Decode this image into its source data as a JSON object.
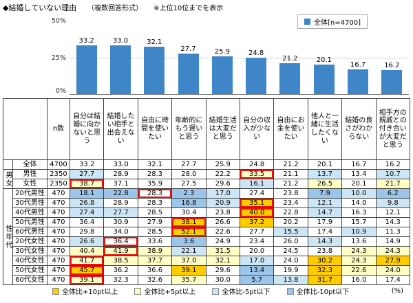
{
  "header": {
    "title": "◆結婚していない理由",
    "format_note": "（複数回答形式）",
    "rank_note": "※上位10位までを表示"
  },
  "legend": {
    "label": "全体[n=4700]",
    "color": "#3e86c7"
  },
  "y_axis": {
    "max": "50%",
    "mid": "25%",
    "min": "0%"
  },
  "chart_data": {
    "type": "bar",
    "title": "結婚していない理由（複数回答形式） 上位10位",
    "categories": [
      "自分は結婚に向かないと思う",
      "結婚したい相手と出会えない",
      "自由に時間を使いたい",
      "年齢的にもう遅いと思う",
      "結婚生活は大変だと思う",
      "自分の収入が少ない",
      "自由にお金を使いたい",
      "他人と一緒に生活したくない",
      "結婚の良さがわからない",
      "相手方の親戚との付き合いが大変だと思う"
    ],
    "values": [
      33.2,
      33.0,
      32.1,
      27.7,
      25.9,
      24.8,
      21.2,
      20.1,
      16.7,
      16.2
    ],
    "series_name": "全体[n=4700]",
    "xlabel": "",
    "ylabel": "%",
    "ylim": [
      0,
      50
    ],
    "bar_color": "#3e86c7",
    "grid": "25% line only",
    "legend_position": "top-right"
  },
  "table": {
    "n_header": "n数",
    "rows": [
      {
        "group": {
          "label": "",
          "span": 1
        },
        "label": "全体",
        "n": "4700",
        "values": [
          33.2,
          33.0,
          32.1,
          27.7,
          25.9,
          24.8,
          21.2,
          20.1,
          16.7,
          16.2
        ],
        "cls": [
          "",
          "",
          "",
          "",
          "",
          "",
          "",
          "",
          "",
          ""
        ],
        "max": -1
      },
      {
        "group": {
          "label": "男女",
          "span": 2
        },
        "label": "男性",
        "n": "2350",
        "values": [
          27.7,
          28.9,
          28.3,
          28.0,
          22.2,
          33.5,
          21.1,
          13.7,
          13.4,
          10.7
        ],
        "cls": [
          "m5",
          "",
          "",
          "",
          "",
          "p5",
          "",
          "m5",
          "",
          "m5"
        ],
        "max": 5
      },
      {
        "label": "女性",
        "n": "2350",
        "values": [
          38.7,
          37.1,
          35.9,
          27.5,
          29.6,
          16.1,
          21.2,
          26.5,
          20.1,
          21.7
        ],
        "cls": [
          "p5",
          "",
          "",
          "",
          "",
          "m5",
          "",
          "p5",
          "",
          "p5"
        ],
        "max": 0
      },
      {
        "group": {
          "label": "性年代",
          "span": 10
        },
        "label": "20代男性",
        "n": "470",
        "values": [
          18.1,
          22.8,
          28.3,
          2.3,
          17.0,
          27.4,
          23.8,
          7.9,
          10.0,
          6.2
        ],
        "cls": [
          "m10",
          "m10",
          "",
          "m10",
          "m5",
          "",
          "",
          "m10",
          "m5",
          "m10"
        ],
        "max": 2
      },
      {
        "label": "30代男性",
        "n": "470",
        "values": [
          26.8,
          28.9,
          28.3,
          16.8,
          20.9,
          35.1,
          23.4,
          12.1,
          14.0,
          9.8
        ],
        "cls": [
          "m5",
          "",
          "",
          "m10",
          "m5",
          "p10",
          "",
          "m5",
          "",
          "m5"
        ],
        "max": 5
      },
      {
        "label": "40代男性",
        "n": "470",
        "values": [
          27.4,
          27.7,
          28.5,
          30.4,
          23.8,
          40.0,
          22.8,
          14.7,
          16.3,
          12.1
        ],
        "cls": [
          "m5",
          "m5",
          "",
          "",
          "",
          "p10",
          "",
          "m5",
          "",
          ""
        ],
        "max": 5
      },
      {
        "label": "50代男性",
        "n": "470",
        "values": [
          36.4,
          30.9,
          27.9,
          38.1,
          26.6,
          37.2,
          20.2,
          17.9,
          15.7,
          14.3
        ],
        "cls": [
          "",
          "",
          "",
          "p10",
          "",
          "p10",
          "",
          "",
          "",
          ""
        ],
        "max": 3
      },
      {
        "label": "60代男性",
        "n": "470",
        "values": [
          29.8,
          34.0,
          28.5,
          52.1,
          22.6,
          27.7,
          15.5,
          17.4,
          10.9,
          11.3
        ],
        "cls": [
          "",
          "",
          "",
          "p10",
          "",
          "",
          "m5",
          "",
          "m5",
          ""
        ],
        "max": 3
      },
      {
        "label": "20代女性",
        "n": "470",
        "values": [
          26.6,
          36.4,
          33.6,
          3.6,
          24.9,
          23.4,
          26.0,
          14.3,
          13.6,
          14.9
        ],
        "cls": [
          "m5",
          "",
          "",
          "m10",
          "",
          "",
          "",
          "m5",
          "",
          ""
        ],
        "max": 1
      },
      {
        "label": "30代女性",
        "n": "470",
        "values": [
          40.4,
          41.9,
          38.9,
          22.1,
          31.5,
          20.0,
          24.5,
          23.8,
          24.3,
          24.3
        ],
        "cls": [
          "p5",
          "p5",
          "p5",
          "m5",
          "p5",
          "",
          "",
          "",
          "p5",
          "p5"
        ],
        "max": 1
      },
      {
        "label": "40代女性",
        "n": "470",
        "values": [
          41.7,
          38.5,
          37.7,
          37.0,
          32.1,
          17.0,
          24.0,
          30.2,
          24.3,
          27.9
        ],
        "cls": [
          "p5",
          "p5",
          "p5",
          "p5",
          "p5",
          "m5",
          "",
          "p10",
          "p5",
          "p10"
        ],
        "max": 0
      },
      {
        "label": "50代女性",
        "n": "470",
        "values": [
          45.7,
          36.2,
          36.6,
          39.1,
          29.6,
          13.4,
          19.9,
          32.3,
          22.6,
          24.0
        ],
        "cls": [
          "p10",
          "",
          "",
          "p10",
          "",
          "m10",
          "",
          "p10",
          "p5",
          "p5"
        ],
        "max": 0
      },
      {
        "label": "60代女性",
        "n": "470",
        "values": [
          39.1,
          32.3,
          32.6,
          35.7,
          30.0,
          5.7,
          13.8,
          31.7,
          16.0,
          17.4
        ],
        "cls": [
          "p5",
          "",
          "",
          "p5",
          "",
          "m10",
          "m5",
          "p10",
          "",
          ""
        ],
        "max": 0
      }
    ]
  },
  "footer": {
    "items": [
      {
        "label": "全体比+10pt以上",
        "color": "#ffcc00"
      },
      {
        "label": "全体比+5pt以上",
        "color": "#ffffc5"
      },
      {
        "label": "全体比-5pt以下",
        "color": "#cde6f6"
      },
      {
        "label": "全体比-10pt以下",
        "color": "#9cc6e9"
      }
    ],
    "unit": "(%)"
  }
}
